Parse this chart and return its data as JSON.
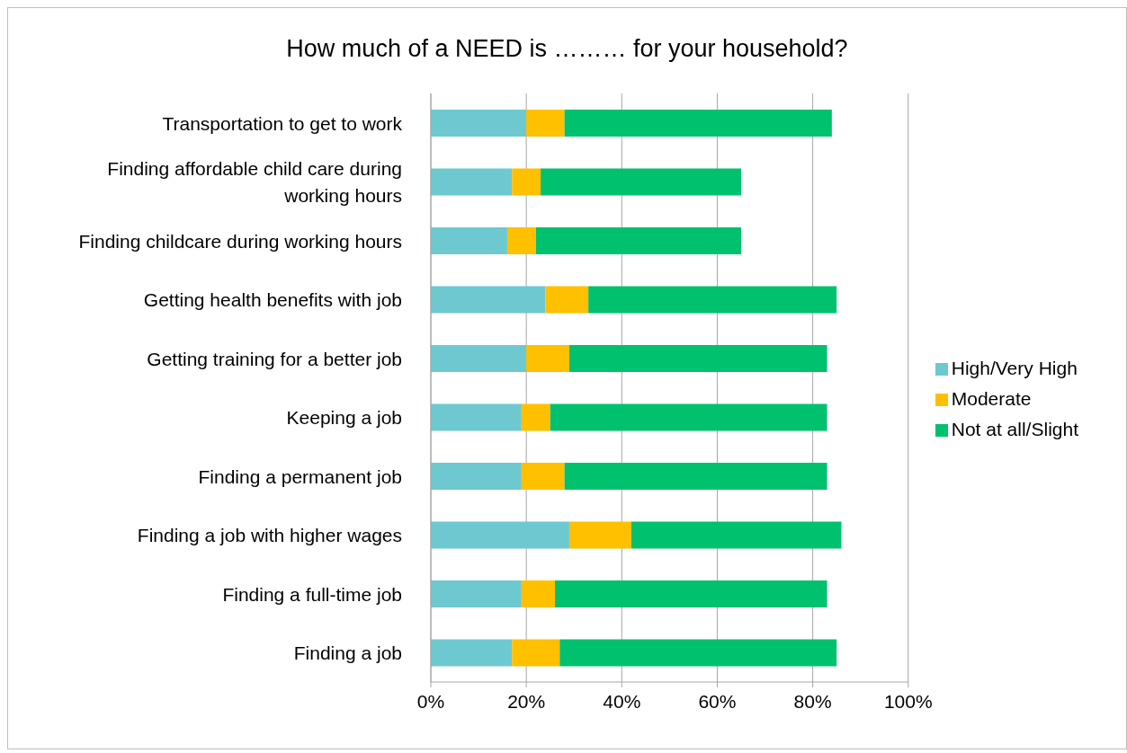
{
  "chart_data": {
    "type": "bar",
    "orientation": "horizontal",
    "stacked": true,
    "title": "How much of a NEED is ……… for your household?",
    "categories": [
      "Transportation to get to work",
      "Finding affordable child care during working hours",
      "Finding childcare during working hours",
      "Getting health benefits with job",
      "Getting training for a better job",
      "Keeping a job",
      "Finding a permanent job",
      "Finding a job with higher wages",
      "Finding a full-time job",
      "Finding a job"
    ],
    "series": [
      {
        "name": "High/Very High",
        "color": "#6dc9cf",
        "values": [
          20,
          17,
          16,
          24,
          20,
          19,
          19,
          29,
          19,
          17
        ]
      },
      {
        "name": "Moderate",
        "color": "#ffc000",
        "values": [
          8,
          6,
          6,
          9,
          9,
          6,
          9,
          13,
          7,
          10
        ]
      },
      {
        "name": "Not at all/Slight",
        "color": "#00c16e",
        "values": [
          56,
          42,
          43,
          52,
          54,
          58,
          55,
          44,
          57,
          58
        ]
      }
    ],
    "xlim": [
      0,
      100
    ],
    "xticks": [
      {
        "value": 0,
        "label": "0%"
      },
      {
        "value": 20,
        "label": "20%"
      },
      {
        "value": 40,
        "label": "40%"
      },
      {
        "value": 60,
        "label": "60%"
      },
      {
        "value": 80,
        "label": "80%"
      },
      {
        "value": 100,
        "label": "100%"
      }
    ],
    "grid": "x",
    "legend": "right"
  }
}
